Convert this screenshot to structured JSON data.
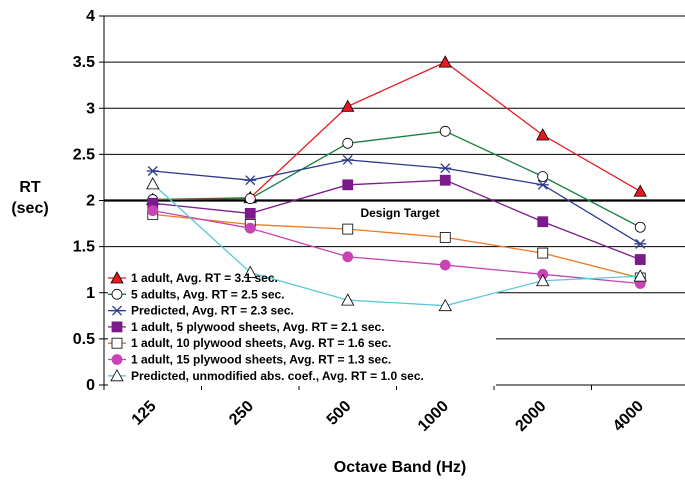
{
  "chart_data": {
    "type": "line",
    "xlabel": "Octave Band (Hz)",
    "ylabel_line1": "RT",
    "ylabel_line2": "(sec)",
    "categories": [
      "125",
      "250",
      "500",
      "1000",
      "2000",
      "4000"
    ],
    "ylim": [
      0,
      4
    ],
    "yticks": [
      "0",
      "0.5",
      "1",
      "1.5",
      "2",
      "2.5",
      "3",
      "3.5",
      "4"
    ],
    "grid": true,
    "legend_position": "bottom-left inside plot",
    "annotation": {
      "text": "Design Target",
      "y": 2.0
    },
    "series": [
      {
        "name": "1 adult, Avg. RT = 3.1 sec.",
        "color": "#e8191e",
        "marker": "triangle-filled",
        "values": [
          2.01,
          2.03,
          3.02,
          3.5,
          2.71,
          2.1
        ]
      },
      {
        "name": "5 adults,  Avg. RT = 2.5 sec.",
        "color": "#1a8040",
        "marker": "circle-open",
        "values": [
          2.01,
          2.02,
          2.62,
          2.75,
          2.26,
          1.71
        ]
      },
      {
        "name": "Predicted, Avg. RT = 2.3 sec.",
        "color": "#2b3a8c",
        "marker": "star",
        "values": [
          2.32,
          2.22,
          2.44,
          2.35,
          2.17,
          1.53
        ]
      },
      {
        "name": "1 adult, 5 plywood sheets, Avg. RT = 2.1 sec.",
        "color": "#7b1a8a",
        "marker": "square-filled",
        "values": [
          1.97,
          1.86,
          2.17,
          2.22,
          1.77,
          1.36
        ]
      },
      {
        "name": "1 adult, 10 plywood sheets, Avg. RT = 1.6 sec.",
        "color": "#f07820",
        "marker": "square-open",
        "values": [
          1.85,
          1.74,
          1.69,
          1.6,
          1.43,
          1.16
        ]
      },
      {
        "name": "1 adult, 15 plywood sheets, Avg. RT = 1.3 sec.",
        "color": "#c844b4",
        "marker": "circle-filled",
        "values": [
          1.89,
          1.7,
          1.39,
          1.3,
          1.2,
          1.1
        ]
      },
      {
        "name": "Predicted, unmodified abs. coef., Avg. RT = 1.0 sec.",
        "color": "#5bc8d8",
        "marker": "triangle-open",
        "values": [
          2.18,
          1.22,
          0.92,
          0.86,
          1.13,
          1.18
        ]
      }
    ]
  }
}
